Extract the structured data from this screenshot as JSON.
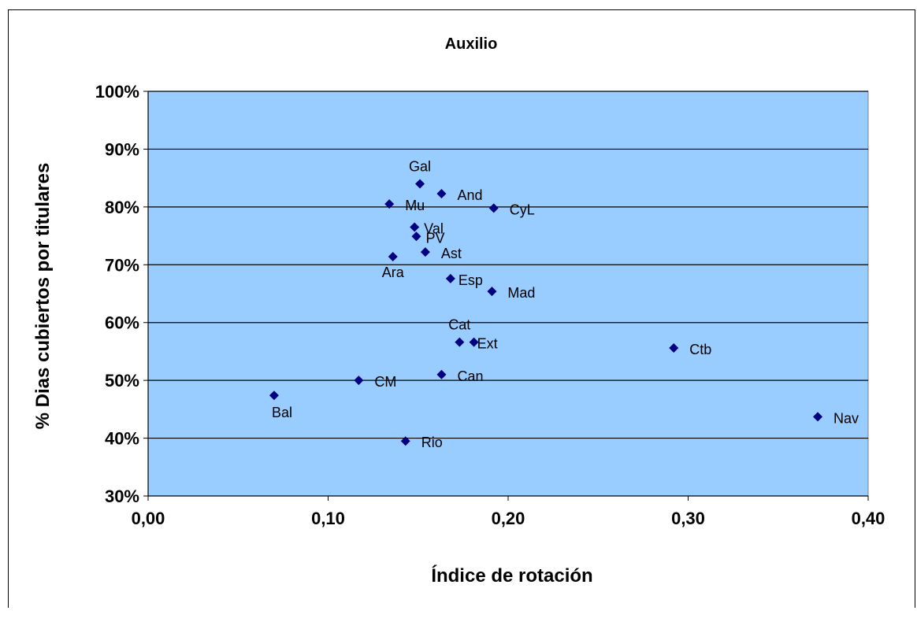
{
  "chart_data": {
    "type": "scatter",
    "title": "Auxilio",
    "xlabel": "Índice de rotación",
    "ylabel": "% Dias cubiertos por titulares",
    "xlim": [
      0.0,
      0.4
    ],
    "ylim": [
      30,
      100
    ],
    "x_ticks": [
      0.0,
      0.1,
      0.2,
      0.3,
      0.4
    ],
    "x_tick_labels": [
      "0,00",
      "0,10",
      "0,20",
      "0,30",
      "0,40"
    ],
    "y_ticks": [
      30,
      40,
      50,
      60,
      70,
      80,
      90,
      100
    ],
    "y_tick_labels": [
      "30%",
      "40%",
      "50%",
      "60%",
      "70%",
      "80%",
      "90%",
      "100%"
    ],
    "grid": "horizontal",
    "legend": "none",
    "colors": {
      "plot_background": "#99ccff",
      "marker": "#000080",
      "gridline": "#000000"
    },
    "points": [
      {
        "label": "Gal",
        "x": 0.151,
        "y": 84.0
      },
      {
        "label": "And",
        "x": 0.163,
        "y": 82.3
      },
      {
        "label": "Mu",
        "x": 0.134,
        "y": 80.5
      },
      {
        "label": "CyL",
        "x": 0.192,
        "y": 79.8
      },
      {
        "label": "Val",
        "x": 0.148,
        "y": 76.5
      },
      {
        "label": "PV",
        "x": 0.149,
        "y": 74.9
      },
      {
        "label": "Ast",
        "x": 0.154,
        "y": 72.2
      },
      {
        "label": "Ara",
        "x": 0.136,
        "y": 71.4
      },
      {
        "label": "Esp",
        "x": 0.168,
        "y": 67.6
      },
      {
        "label": "Mad",
        "x": 0.191,
        "y": 65.4
      },
      {
        "label": "Cat",
        "x": 0.173,
        "y": 56.6
      },
      {
        "label": "Ext",
        "x": 0.181,
        "y": 56.6
      },
      {
        "label": "Ctb",
        "x": 0.292,
        "y": 55.6
      },
      {
        "label": "Can",
        "x": 0.163,
        "y": 51.0
      },
      {
        "label": "CM",
        "x": 0.117,
        "y": 50.0
      },
      {
        "label": "Bal",
        "x": 0.07,
        "y": 47.4
      },
      {
        "label": "Nav",
        "x": 0.372,
        "y": 43.7
      },
      {
        "label": "Rio",
        "x": 0.143,
        "y": 39.5
      }
    ]
  }
}
